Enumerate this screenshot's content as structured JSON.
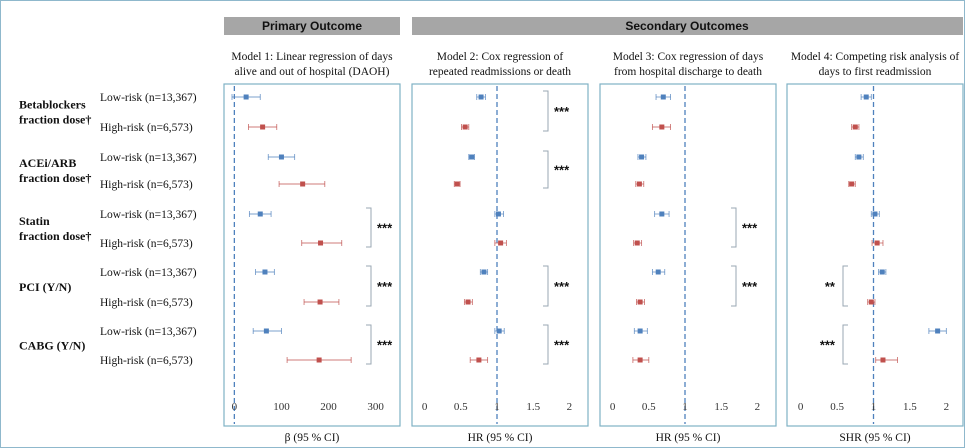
{
  "headers": {
    "primary": "Primary Outcome",
    "secondary": "Secondary Outcomes"
  },
  "row_groups": [
    {
      "label_lines": [
        "Betablockers",
        "fraction dose†"
      ]
    },
    {
      "label_lines": [
        "ACEi/ARB",
        "fraction dose†"
      ]
    },
    {
      "label_lines": [
        "Statin",
        "fraction dose†"
      ]
    },
    {
      "label_lines": [
        "PCI (Y/N)"
      ]
    },
    {
      "label_lines": [
        "CABG (Y/N)"
      ]
    }
  ],
  "risk_labels": {
    "low": "Low-risk (n=13,367)",
    "high": "High-risk (n=6,573)"
  },
  "colors": {
    "low": "#4f81bd",
    "high": "#c0504d",
    "panel_border": "#7fb2c5",
    "header_bg": "#a6a6a6",
    "ref_line": "#4f81bd"
  },
  "chart_data": [
    {
      "type": "forest",
      "title_lines": [
        "Model 1: Linear regression of days",
        "alive and out of hospital (DAOH)"
      ],
      "xlabel": "β (95 % CI)",
      "xlim": [
        -5,
        305
      ],
      "ticks": [
        0,
        100,
        200,
        300
      ],
      "ref_value": 0,
      "estimates": [
        {
          "group": 0,
          "risk": "low",
          "est": 25,
          "lo": -5,
          "hi": 55
        },
        {
          "group": 0,
          "risk": "high",
          "est": 60,
          "lo": 30,
          "hi": 90
        },
        {
          "group": 1,
          "risk": "low",
          "est": 100,
          "lo": 72,
          "hi": 128
        },
        {
          "group": 1,
          "risk": "high",
          "est": 145,
          "lo": 95,
          "hi": 192
        },
        {
          "group": 2,
          "risk": "low",
          "est": 55,
          "lo": 32,
          "hi": 78
        },
        {
          "group": 2,
          "risk": "high",
          "est": 183,
          "lo": 143,
          "hi": 228
        },
        {
          "group": 3,
          "risk": "low",
          "est": 65,
          "lo": 45,
          "hi": 85
        },
        {
          "group": 3,
          "risk": "high",
          "est": 182,
          "lo": 148,
          "hi": 222
        },
        {
          "group": 4,
          "risk": "low",
          "est": 68,
          "lo": 40,
          "hi": 100
        },
        {
          "group": 4,
          "risk": "high",
          "est": 180,
          "lo": 112,
          "hi": 248
        }
      ],
      "significance": [
        {
          "group": 2,
          "label": "***"
        },
        {
          "group": 3,
          "label": "***"
        },
        {
          "group": 4,
          "label": "***"
        }
      ]
    },
    {
      "type": "forest",
      "title_lines": [
        "Model 2: Cox regression of",
        "repeated readmissions  or death"
      ],
      "xlabel": "HR (95 % CI)",
      "xlim": [
        -0.05,
        2.05
      ],
      "ticks": [
        0,
        0.5,
        1,
        1.5,
        2
      ],
      "ref_value": 1,
      "estimates": [
        {
          "group": 0,
          "risk": "low",
          "est": 0.78,
          "lo": 0.72,
          "hi": 0.84
        },
        {
          "group": 0,
          "risk": "high",
          "est": 0.56,
          "lo": 0.51,
          "hi": 0.61
        },
        {
          "group": 1,
          "risk": "low",
          "est": 0.65,
          "lo": 0.61,
          "hi": 0.69
        },
        {
          "group": 1,
          "risk": "high",
          "est": 0.45,
          "lo": 0.41,
          "hi": 0.49
        },
        {
          "group": 2,
          "risk": "low",
          "est": 1.02,
          "lo": 0.97,
          "hi": 1.09
        },
        {
          "group": 2,
          "risk": "high",
          "est": 1.05,
          "lo": 0.97,
          "hi": 1.13
        },
        {
          "group": 3,
          "risk": "low",
          "est": 0.82,
          "lo": 0.77,
          "hi": 0.87
        },
        {
          "group": 3,
          "risk": "high",
          "est": 0.6,
          "lo": 0.55,
          "hi": 0.66
        },
        {
          "group": 4,
          "risk": "low",
          "est": 1.03,
          "lo": 0.97,
          "hi": 1.1
        },
        {
          "group": 4,
          "risk": "high",
          "est": 0.75,
          "lo": 0.63,
          "hi": 0.87
        }
      ],
      "significance": [
        {
          "group": 0,
          "label": "***"
        },
        {
          "group": 1,
          "label": "***"
        },
        {
          "group": 3,
          "label": "***"
        },
        {
          "group": 4,
          "label": "***"
        }
      ]
    },
    {
      "type": "forest",
      "title_lines": [
        "Model 3: Cox regression of days",
        "from hospital discharge to death"
      ],
      "xlabel": "HR (95 % CI)",
      "xlim": [
        -0.05,
        2.05
      ],
      "ticks": [
        0,
        0.5,
        1,
        1.5,
        2
      ],
      "ref_value": 1,
      "estimates": [
        {
          "group": 0,
          "risk": "low",
          "est": 0.7,
          "lo": 0.6,
          "hi": 0.8
        },
        {
          "group": 0,
          "risk": "high",
          "est": 0.68,
          "lo": 0.55,
          "hi": 0.8
        },
        {
          "group": 1,
          "risk": "low",
          "est": 0.4,
          "lo": 0.35,
          "hi": 0.46
        },
        {
          "group": 1,
          "risk": "high",
          "est": 0.37,
          "lo": 0.32,
          "hi": 0.43
        },
        {
          "group": 2,
          "risk": "low",
          "est": 0.68,
          "lo": 0.58,
          "hi": 0.78
        },
        {
          "group": 2,
          "risk": "high",
          "est": 0.34,
          "lo": 0.29,
          "hi": 0.4
        },
        {
          "group": 3,
          "risk": "low",
          "est": 0.63,
          "lo": 0.55,
          "hi": 0.72
        },
        {
          "group": 3,
          "risk": "high",
          "est": 0.38,
          "lo": 0.33,
          "hi": 0.44
        },
        {
          "group": 4,
          "risk": "low",
          "est": 0.38,
          "lo": 0.3,
          "hi": 0.48
        },
        {
          "group": 4,
          "risk": "high",
          "est": 0.38,
          "lo": 0.28,
          "hi": 0.5
        }
      ],
      "significance": [
        {
          "group": 2,
          "label": "***"
        },
        {
          "group": 3,
          "label": "***"
        }
      ]
    },
    {
      "type": "forest",
      "title_lines": [
        "Model 4: Competing risk analysis of",
        "days to first readmission"
      ],
      "xlabel": "SHR (95 % CI)",
      "xlim": [
        -0.05,
        2.05
      ],
      "ticks": [
        0,
        0.5,
        1,
        1.5,
        2
      ],
      "ref_value": 1,
      "estimates": [
        {
          "group": 0,
          "risk": "low",
          "est": 0.9,
          "lo": 0.83,
          "hi": 0.97
        },
        {
          "group": 0,
          "risk": "high",
          "est": 0.75,
          "lo": 0.7,
          "hi": 0.8
        },
        {
          "group": 1,
          "risk": "low",
          "est": 0.8,
          "lo": 0.75,
          "hi": 0.86
        },
        {
          "group": 1,
          "risk": "high",
          "est": 0.7,
          "lo": 0.66,
          "hi": 0.75
        },
        {
          "group": 2,
          "risk": "low",
          "est": 1.02,
          "lo": 0.97,
          "hi": 1.08
        },
        {
          "group": 2,
          "risk": "high",
          "est": 1.05,
          "lo": 0.98,
          "hi": 1.13
        },
        {
          "group": 3,
          "risk": "low",
          "est": 1.12,
          "lo": 1.07,
          "hi": 1.17
        },
        {
          "group": 3,
          "risk": "high",
          "est": 0.97,
          "lo": 0.92,
          "hi": 1.02
        },
        {
          "group": 4,
          "risk": "low",
          "est": 1.88,
          "lo": 1.76,
          "hi": 2.0
        },
        {
          "group": 4,
          "risk": "high",
          "est": 1.13,
          "lo": 1.03,
          "hi": 1.33
        }
      ],
      "significance": [
        {
          "group": 3,
          "label": "**"
        },
        {
          "group": 4,
          "label": "***"
        }
      ]
    }
  ]
}
